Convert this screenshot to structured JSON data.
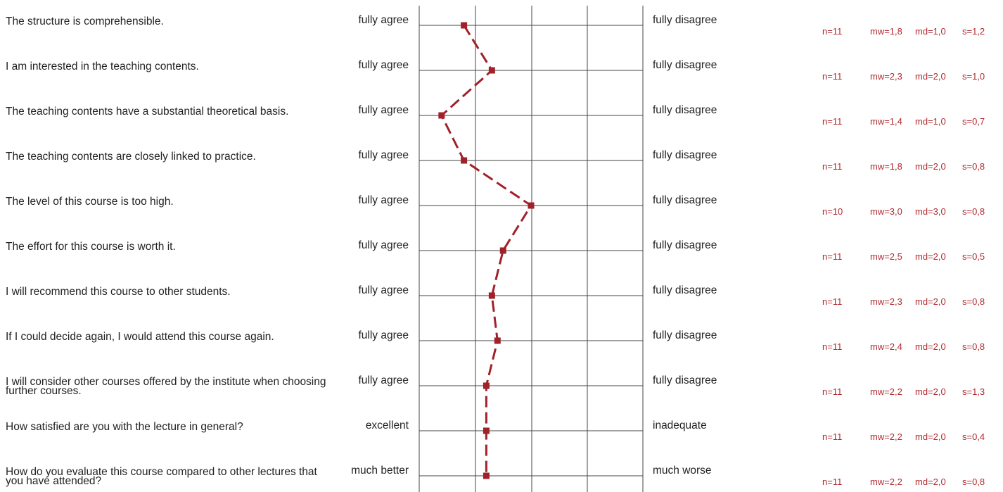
{
  "chart_data": {
    "type": "line",
    "scale_points": 5,
    "colors": {
      "profile_line": "#a1212a",
      "stats_text": "#b02a30",
      "grid": "#444444"
    },
    "rows": [
      {
        "question": "The structure is comprehensible.",
        "left_label": "fully agree",
        "right_label": "fully disagree",
        "value": 1.8,
        "n": "n=11",
        "mw": "mw=1,8",
        "md": "md=1,0",
        "s": "s=1,2"
      },
      {
        "question": "I am interested in the teaching contents.",
        "left_label": "fully agree",
        "right_label": "fully disagree",
        "value": 2.3,
        "n": "n=11",
        "mw": "mw=2,3",
        "md": "md=2,0",
        "s": "s=1,0"
      },
      {
        "question": "The teaching contents have a substantial theoretical basis.",
        "left_label": "fully agree",
        "right_label": "fully disagree",
        "value": 1.4,
        "n": "n=11",
        "mw": "mw=1,4",
        "md": "md=1,0",
        "s": "s=0,7"
      },
      {
        "question": "The teaching contents are closely linked to practice.",
        "left_label": "fully agree",
        "right_label": "fully disagree",
        "value": 1.8,
        "n": "n=11",
        "mw": "mw=1,8",
        "md": "md=2,0",
        "s": "s=0,8"
      },
      {
        "question": "The level of this course is too high.",
        "left_label": "fully agree",
        "right_label": "fully disagree",
        "value": 3.0,
        "n": "n=10",
        "mw": "mw=3,0",
        "md": "md=3,0",
        "s": "s=0,8"
      },
      {
        "question": "The effort for this course is worth it.",
        "left_label": "fully agree",
        "right_label": "fully disagree",
        "value": 2.5,
        "n": "n=11",
        "mw": "mw=2,5",
        "md": "md=2,0",
        "s": "s=0,5"
      },
      {
        "question": "I will recommend this course to other students.",
        "left_label": "fully agree",
        "right_label": "fully disagree",
        "value": 2.3,
        "n": "n=11",
        "mw": "mw=2,3",
        "md": "md=2,0",
        "s": "s=0,8"
      },
      {
        "question": "If I could decide again, I would attend this course again.",
        "left_label": "fully agree",
        "right_label": "fully disagree",
        "value": 2.4,
        "n": "n=11",
        "mw": "mw=2,4",
        "md": "md=2,0",
        "s": "s=0,8"
      },
      {
        "question": "I will consider other courses offered by the institute when choosing further courses.",
        "left_label": "fully agree",
        "right_label": "fully disagree",
        "value": 2.2,
        "n": "n=11",
        "mw": "mw=2,2",
        "md": "md=2,0",
        "s": "s=1,3"
      },
      {
        "question": "How satisfied are you with the lecture in general?",
        "left_label": "excellent",
        "right_label": "inadequate",
        "value": 2.2,
        "n": "n=11",
        "mw": "mw=2,2",
        "md": "md=2,0",
        "s": "s=0,4"
      },
      {
        "question": "How do you evaluate this course compared to other lectures that you have attended?",
        "left_label": "much better",
        "right_label": "much worse",
        "value": 2.2,
        "n": "n=11",
        "mw": "mw=2,2",
        "md": "md=2,0",
        "s": "s=0,8"
      }
    ]
  }
}
